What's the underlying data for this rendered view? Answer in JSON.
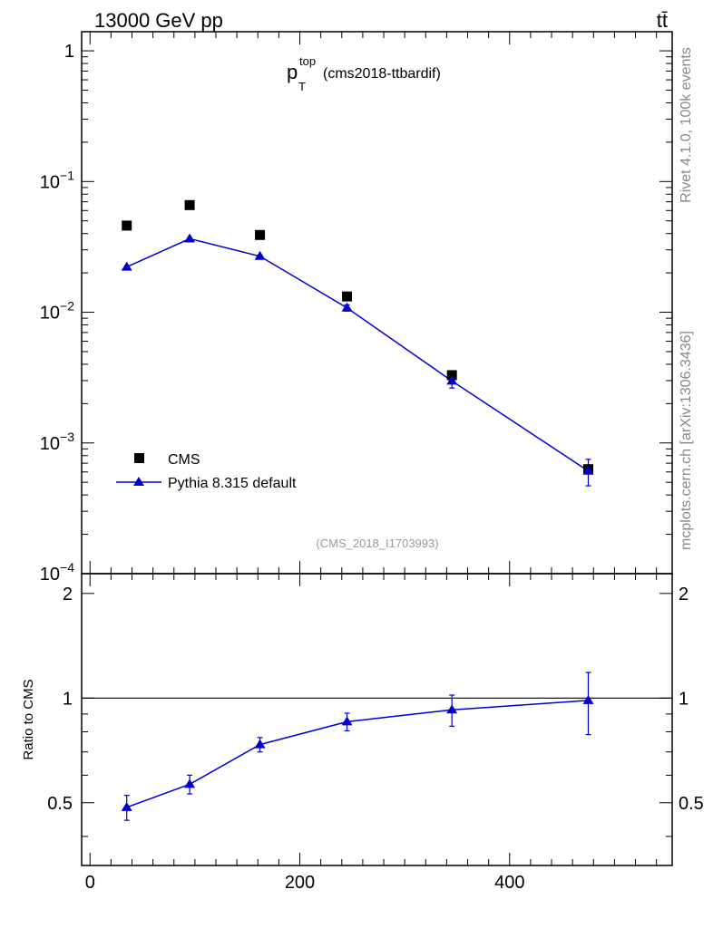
{
  "header": {
    "beam": "13000 GeV pp",
    "process": "tt̄"
  },
  "side_labels": {
    "rivet": "Rivet 4.1.0,  100k events",
    "mcplots": "mcplots.cern.ch [arXiv:1306.3436]"
  },
  "chart_data": {
    "type": "scatter",
    "title_main": "p",
    "title_sub": "T",
    "title_sup": "top",
    "title_rest": "(cms2018-ttbardif)",
    "watermark": "(CMS_2018_I1703993)",
    "colors": {
      "data": "#000000",
      "mc": "#0000cc",
      "ref_line": "#000000"
    },
    "main_panel": {
      "yscale": "log",
      "ylim": [
        0.0001,
        1.4
      ],
      "xlim": [
        -8,
        555
      ],
      "ytick_labels": [
        {
          "base": "1",
          "exp": ""
        },
        {
          "base": "10",
          "exp": "−1"
        },
        {
          "base": "10",
          "exp": "−2"
        },
        {
          "base": "10",
          "exp": "−3"
        },
        {
          "base": "10",
          "exp": "−4"
        }
      ],
      "ytick_values": [
        1,
        0.1,
        0.01,
        0.001,
        0.0001
      ],
      "series": [
        {
          "name": "CMS",
          "marker": "square",
          "x": [
            35,
            95,
            162,
            245,
            345,
            475
          ],
          "y": [
            0.046,
            0.066,
            0.039,
            0.0132,
            0.0033,
            0.00063
          ],
          "yerr": [
            0,
            0,
            0,
            0,
            0,
            0
          ]
        },
        {
          "name": "Pythia 8.315 default",
          "marker": "triangle",
          "line": true,
          "x": [
            35,
            95,
            162,
            245,
            345,
            475
          ],
          "y": [
            0.0222,
            0.0365,
            0.0268,
            0.0108,
            0.00298,
            0.00061
          ],
          "yerr": [
            0,
            0,
            0,
            0.0006,
            0.00035,
            0.00014
          ]
        }
      ],
      "legend": [
        {
          "label": "CMS",
          "marker": "square"
        },
        {
          "label": "Pythia 8.315 default",
          "marker": "triangle"
        }
      ],
      "legend_position": "lower-left"
    },
    "ratio_panel": {
      "ylabel": "Ratio to CMS",
      "ylim": [
        0.33,
        2.28
      ],
      "ytick_labels": [
        "2",
        "1",
        "0.5"
      ],
      "ytick_values": [
        2,
        1,
        0.5
      ],
      "reference": 1,
      "series": [
        {
          "name": "Pythia 8.315 default",
          "x": [
            35,
            95,
            162,
            245,
            345,
            475
          ],
          "y": [
            0.485,
            0.565,
            0.735,
            0.855,
            0.925,
            0.985
          ],
          "yerr": [
            0.04,
            0.035,
            0.035,
            0.05,
            0.095,
            0.2
          ]
        }
      ]
    },
    "xaxis": {
      "tick_labels": [
        "0",
        "200",
        "400"
      ],
      "tick_values": [
        0,
        200,
        400
      ]
    }
  }
}
